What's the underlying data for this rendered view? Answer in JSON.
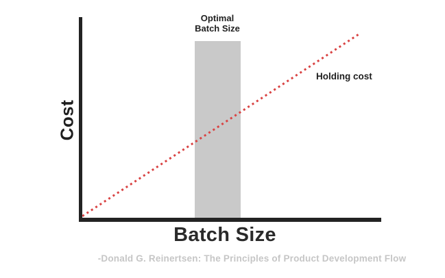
{
  "chart_data": {
    "type": "line",
    "title": "",
    "xlabel": "Batch Size",
    "ylabel": "Cost",
    "x_range": [
      0,
      1
    ],
    "y_range": [
      0,
      1
    ],
    "grid": false,
    "ticks": "none",
    "legend": "inline-label",
    "series": [
      {
        "name": "Holding cost",
        "style": "dotted",
        "color": "#d94343",
        "points": [
          [
            0.005,
            0.015
          ],
          [
            0.93,
            0.92
          ]
        ]
      }
    ],
    "annotations": [
      {
        "type": "vertical-band",
        "label": "Optimal Batch Size",
        "label_lines": [
          "Optimal",
          "Batch Size"
        ],
        "x_start": 0.38,
        "x_end": 0.532,
        "y_top": 0.88,
        "color": "#c9c9c9"
      }
    ],
    "attribution": "-Donald G. Reinertsen: The Principles of Product Development Flow"
  },
  "colors": {
    "axis": "#232323",
    "holding_cost_line": "#d94343",
    "optimal_band": "#c9c9c9",
    "attribution_text": "#c6c6c6",
    "label_text": "#1f1f1f",
    "background": "#ffffff"
  }
}
